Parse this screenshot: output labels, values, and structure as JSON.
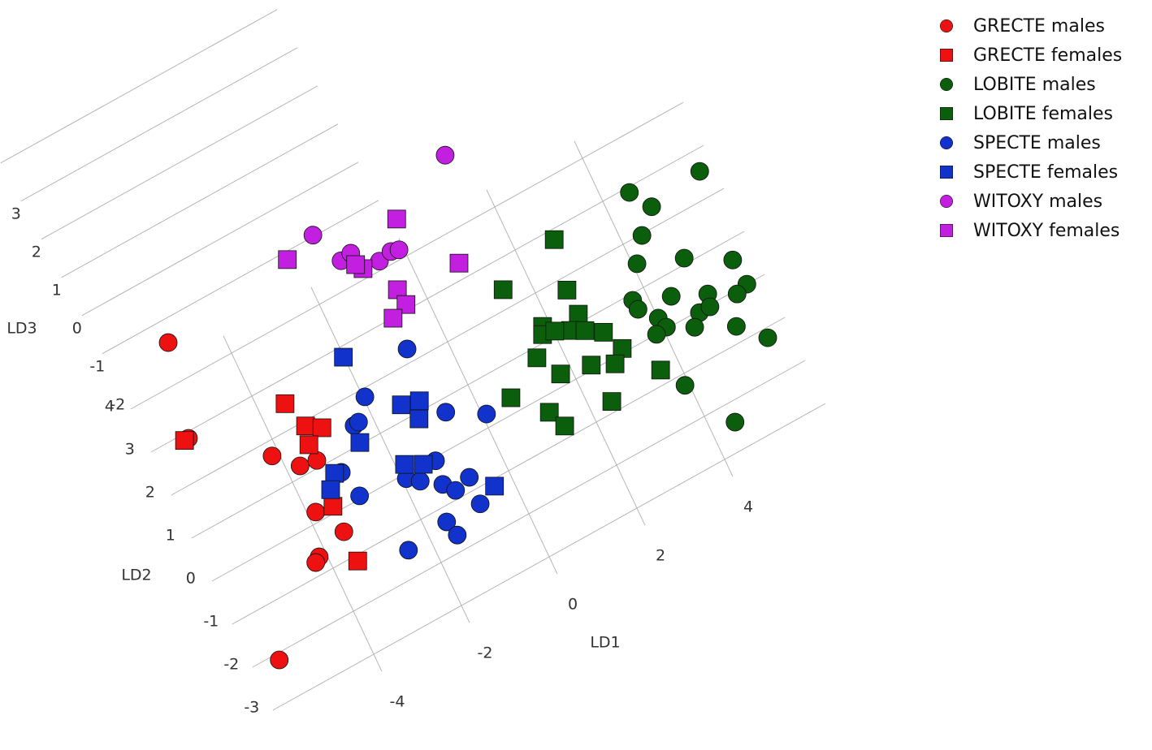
{
  "chart_data": {
    "type": "scatter3d",
    "xlabel": "LD1",
    "ylabel": "LD2",
    "zlabel": "LD3",
    "xlim": [
      -6.3,
      6.3
    ],
    "ylim": [
      -3.4,
      4.4
    ],
    "zlim": [
      -3,
      3.5
    ],
    "xticks": [
      -4,
      -2,
      0,
      2,
      4
    ],
    "yticks": [
      -3,
      -2,
      -1,
      0,
      1,
      2,
      3,
      4
    ],
    "zticks": [
      -2,
      -1,
      0,
      1,
      2,
      3
    ],
    "grid": true,
    "legend": "upper right",
    "series": [
      {
        "name": "GRECTE males",
        "color": "#ee1111",
        "marker": "circle",
        "x": [
          -4.93,
          -5.38,
          -4.02,
          -3.6,
          -3.25,
          -3.71,
          -3.37,
          -4.03,
          -4.14,
          -5.63
        ],
        "y": [
          2.11,
          0.14,
          -1.04,
          -1.51,
          -1.58,
          -2.52,
          -3.17,
          -3.38,
          -3.45,
          -4.87
        ],
        "z": [
          0,
          0,
          0,
          0,
          0,
          0,
          0,
          0,
          0,
          0
        ]
      },
      {
        "name": "GRECTE females",
        "color": "#ee1111",
        "marker": "square",
        "x": [
          -5.47,
          -3.34,
          -3.16,
          -2.88,
          -3.26,
          -3.35,
          -3.37
        ],
        "y": [
          0.14,
          -0.21,
          -0.83,
          -1.03,
          -1.21,
          -2.59,
          -3.85
        ],
        "z": [
          0,
          0,
          0,
          0,
          0,
          0,
          0
        ]
      },
      {
        "name": "LOBITE males",
        "color": "#0b5e0b",
        "marker": "circle",
        "x": [
          6.13,
          4.68,
          4.96,
          4.54,
          4.21,
          5.11,
          5.97,
          6.02,
          5.23,
          5.76,
          4.55,
          3.82,
          3.84,
          4.92,
          5.16,
          4.13,
          4.2,
          4.71,
          5.47,
          3.96,
          5.94,
          4.04,
          4.63
        ],
        "y": [
          -0.17,
          0.16,
          -0.33,
          -0.76,
          -1.23,
          -1.61,
          -2.14,
          -2.73,
          -2.51,
          -2.81,
          -2.18,
          -1.86,
          -2.08,
          -2.77,
          -2.77,
          -2.45,
          -2.7,
          -2.99,
          -3.4,
          -2.73,
          -3.93,
          -3.96,
          -5.15
        ],
        "z": [
          0,
          0,
          0,
          0,
          0,
          0,
          0,
          0,
          0,
          0,
          0,
          0,
          0,
          0,
          0,
          0,
          0,
          0,
          0,
          0,
          0,
          0,
          0
        ]
      },
      {
        "name": "LOBITE females",
        "color": "#0b5e0b",
        "marker": "square",
        "x": [
          2.92,
          1.57,
          2.72,
          2.72,
          1.97,
          2.44,
          2.7,
          3.02,
          1.9,
          2.15,
          3.22,
          1.6,
          2.52,
          2.96,
          1.89,
          3.73,
          0.79,
          2.58,
          1.36,
          1.52
        ],
        "y": [
          0.06,
          -0.34,
          -1.0,
          -1.56,
          -1.42,
          -1.78,
          -1.93,
          -2.15,
          -1.57,
          -1.63,
          -2.64,
          -1.94,
          -2.63,
          -2.85,
          -2.48,
          -3.43,
          -2.41,
          -3.51,
          -3.07,
          -3.48
        ],
        "z": [
          0,
          0,
          0,
          0,
          0,
          0,
          0,
          0,
          0,
          0,
          0,
          0,
          0,
          0,
          0,
          0,
          0,
          0,
          0,
          0
        ]
      },
      {
        "name": "SPECTE males",
        "color": "#1133cc",
        "marker": "circle",
        "x": [
          -0.67,
          -1.84,
          -0.51,
          0.21,
          -2.28,
          -2.17,
          -1.11,
          -2.91,
          -1.79,
          -1.56,
          -1.18,
          -1.0,
          -0.64,
          -2.78,
          -0.67,
          -1.43,
          -1.35,
          -2.36
        ],
        "y": [
          -0.45,
          -0.9,
          -2.01,
          -2.46,
          -1.32,
          -1.3,
          -2.8,
          -2.05,
          -2.83,
          -3.02,
          -3.31,
          -3.55,
          -3.45,
          -2.67,
          -4.05,
          -4.04,
          -4.39,
          -4.17
        ],
        "z": [
          0,
          0,
          0,
          0,
          0,
          0,
          0,
          0,
          0,
          0,
          0,
          0,
          0,
          0,
          0,
          0,
          0,
          0
        ]
      },
      {
        "name": "SPECTE females",
        "color": "#1133cc",
        "marker": "square",
        "x": [
          -1.89,
          -1.25,
          -0.89,
          -1.05,
          -2.32,
          -1.7,
          -1.36,
          -3.04,
          -3.25,
          -0.26
        ],
        "y": [
          0.05,
          -1.42,
          -1.53,
          -1.86,
          -1.69,
          -2.55,
          -2.74,
          -2.0,
          -2.26,
          -3.87
        ],
        "z": [
          0,
          0,
          0,
          0,
          0,
          0,
          0,
          0,
          0,
          0
        ]
      },
      {
        "name": "WITOXY males",
        "color": "#c21fe0",
        "marker": "circle",
        "x": [
          1.67,
          -1.4,
          -1.11,
          -0.87,
          -0.42,
          -0.13,
          0.03
        ],
        "y": [
          2.73,
          2.61,
          1.85,
          1.89,
          1.45,
          1.51,
          1.46
        ],
        "z": [
          0,
          0,
          0,
          0,
          0,
          0,
          0
        ]
      },
      {
        "name": "WITOXY females",
        "color": "#c21fe0",
        "marker": "square",
        "x": [
          0.25,
          -2.07,
          -0.78,
          -0.88,
          1.0,
          -0.34,
          -0.31,
          -0.66
        ],
        "y": [
          2.05,
          2.42,
          1.48,
          1.63,
          0.6,
          0.74,
          0.38,
          0.26
        ],
        "z": [
          0,
          0,
          0,
          0,
          0,
          0,
          0,
          0
        ]
      }
    ]
  }
}
